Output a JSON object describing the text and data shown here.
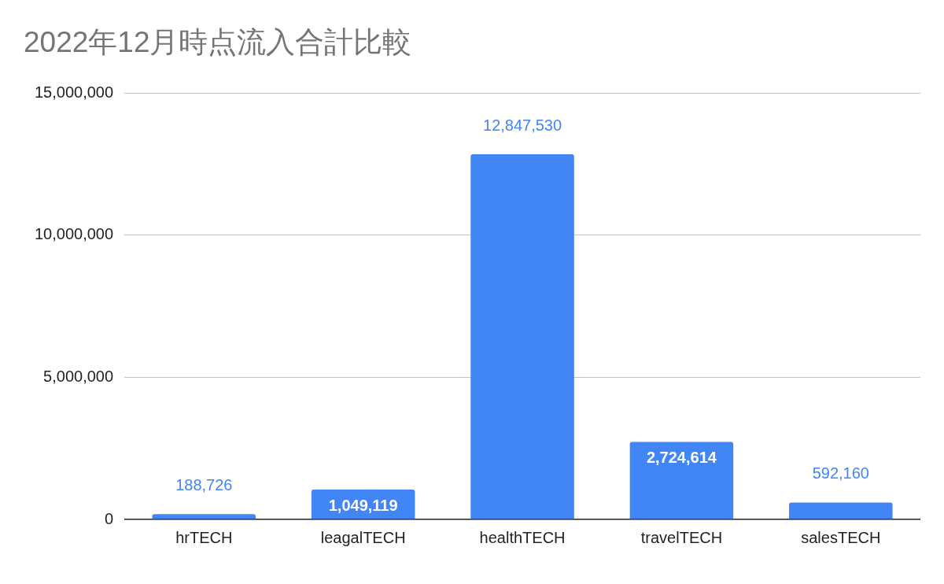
{
  "chart_data": {
    "type": "bar",
    "title": "2022年12月時点流入合計比較",
    "categories": [
      "hrTECH",
      "leagalTECH",
      "healthTECH",
      "travelTECH",
      "salesTECH"
    ],
    "values": [
      188726,
      1049119,
      12847530,
      2724614,
      592160
    ],
    "color": "#4285f4",
    "value_labels": [
      "188,726",
      "1,049,119",
      "12,847,530",
      "2,724,614",
      "592,160"
    ],
    "ylim": [
      0,
      15000000
    ],
    "yticks": [
      {
        "value": 0,
        "label": "0"
      },
      {
        "value": 5000000,
        "label": "5,000,000"
      },
      {
        "value": 10000000,
        "label": "10,000,000"
      },
      {
        "value": 15000000,
        "label": "15,000,000"
      }
    ],
    "grid": "y",
    "legend": false
  }
}
